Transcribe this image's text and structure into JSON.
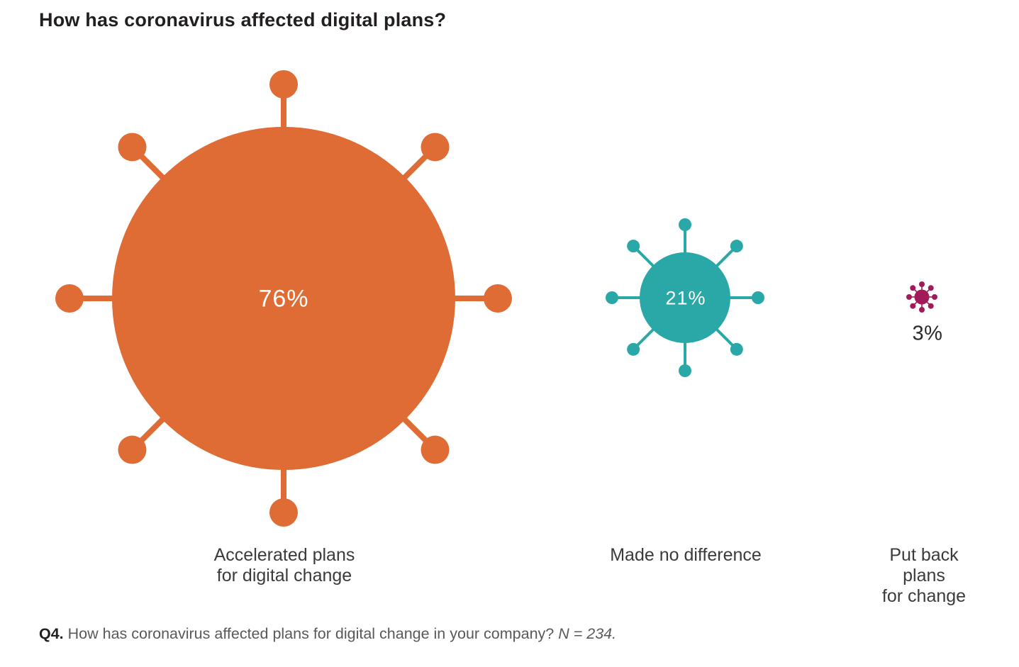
{
  "title": "How has coronavirus affected digital plans?",
  "chart_data": {
    "type": "bubble",
    "title": "How has coronavirus affected digital plans?",
    "subtitle": "",
    "categories": [
      "Accelerated plans for digital change",
      "Made no difference",
      "Put back plans for change"
    ],
    "values": [
      76,
      21,
      3
    ],
    "value_labels": [
      "76%",
      "21%",
      "3%"
    ],
    "colors": [
      "#E06C35",
      "#2AA8A8",
      "#A21A5A"
    ],
    "legend_position": "none",
    "layout_note": "Each value drawn as a coronavirus glyph (circle with 8 spiked knobs); bubble size scales with value; 76% and 21% labels inside bubbles in white, 3% label below bubble in dark text",
    "points": [
      {
        "label_lines": "Accelerated plans\nfor digital change",
        "value": 76,
        "value_label": "76%",
        "color": "#E06C35",
        "geometry": {
          "body_radius": 242,
          "knob_dist": 302,
          "knob_radius": 20,
          "stem_width": 8,
          "spikes": 8
        }
      },
      {
        "label_lines": "Made no difference",
        "value": 21,
        "value_label": "21%",
        "color": "#2AA8A8",
        "geometry": {
          "body_radius": 64,
          "knob_dist": 103,
          "knob_radius": 9,
          "stem_width": 4,
          "spikes": 8
        }
      },
      {
        "label_lines": "Put back plans\nfor change",
        "value": 3,
        "value_label": "3%",
        "color": "#A21A5A",
        "geometry": {
          "body_radius": 10.5,
          "knob_dist": 18,
          "knob_radius": 4,
          "stem_width": 1.6,
          "spikes": 8
        }
      }
    ],
    "footnote": "Q4. How has coronavirus affected plans for digital change in your company? N = 234."
  },
  "footnote": {
    "prefix": "Q4.",
    "text": " How has coronavirus affected plans for digital change in your company? ",
    "sample": "N = 234."
  }
}
